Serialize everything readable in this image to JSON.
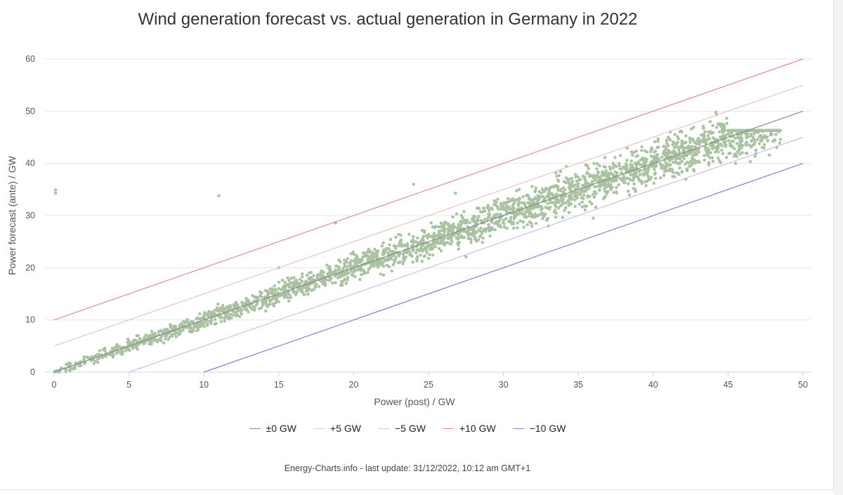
{
  "chart_data": {
    "type": "scatter",
    "title": "Wind generation forecast vs. actual generation in Germany in 2022",
    "xlabel": "Power (post) / GW",
    "ylabel": "Power forecast (ante) / GW",
    "xlim": [
      0,
      50
    ],
    "ylim": [
      0,
      60
    ],
    "x_ticks": [
      0,
      5,
      10,
      15,
      20,
      25,
      30,
      35,
      40,
      45,
      50
    ],
    "y_ticks": [
      0,
      10,
      20,
      30,
      40,
      50,
      60
    ],
    "grid": true,
    "legend_position": "bottom-center",
    "scatter_color": "#a9c2a0",
    "reference_lines": [
      {
        "name": "±0 GW",
        "offset": 0,
        "color": "#8a8a8a"
      },
      {
        "name": "+5 GW",
        "offset": 5,
        "color": "#f2c2c2"
      },
      {
        "name": "−5 GW",
        "offset": -5,
        "color": "#c3c3ee"
      },
      {
        "name": "+10 GW",
        "offset": 10,
        "color": "#e88a8a"
      },
      {
        "name": "−10 GW",
        "offset": -10,
        "color": "#8080e0"
      }
    ],
    "points": [
      [
        0.2,
        0.3
      ],
      [
        0.5,
        0.8
      ],
      [
        1.0,
        1.1
      ],
      [
        1.5,
        1.7
      ],
      [
        2.0,
        2.4
      ],
      [
        2.5,
        2.2
      ],
      [
        3.0,
        3.4
      ],
      [
        3.5,
        3.2
      ],
      [
        4.0,
        4.6
      ],
      [
        4.5,
        4.1
      ],
      [
        5.0,
        5.5
      ],
      [
        5.5,
        4.9
      ],
      [
        6.0,
        6.4
      ],
      [
        6.5,
        6.0
      ],
      [
        7.0,
        7.8
      ],
      [
        7.5,
        6.9
      ],
      [
        8.0,
        8.4
      ],
      [
        8.5,
        9.3
      ],
      [
        9.0,
        8.6
      ],
      [
        9.5,
        10.2
      ],
      [
        10.0,
        10.9
      ],
      [
        10.5,
        9.8
      ],
      [
        11.0,
        11.7
      ],
      [
        11.5,
        11.2
      ],
      [
        12.0,
        12.9
      ],
      [
        12.5,
        11.8
      ],
      [
        13.0,
        13.6
      ],
      [
        13.5,
        14.4
      ],
      [
        14.0,
        13.2
      ],
      [
        14.5,
        15.1
      ],
      [
        15.0,
        16.0
      ],
      [
        15.5,
        14.6
      ],
      [
        16.0,
        17.2
      ],
      [
        16.5,
        16.1
      ],
      [
        17.0,
        17.9
      ],
      [
        17.5,
        16.8
      ],
      [
        18.0,
        19.1
      ],
      [
        18.5,
        18.0
      ],
      [
        19.0,
        20.2
      ],
      [
        19.5,
        18.8
      ],
      [
        20.0,
        21.3
      ],
      [
        20.5,
        19.9
      ],
      [
        21.0,
        22.1
      ],
      [
        21.5,
        20.8
      ],
      [
        22.0,
        23.4
      ],
      [
        22.5,
        21.7
      ],
      [
        23.0,
        24.2
      ],
      [
        23.5,
        22.9
      ],
      [
        24.0,
        25.1
      ],
      [
        24.5,
        23.6
      ],
      [
        25.0,
        26.4
      ],
      [
        25.5,
        24.8
      ],
      [
        26.0,
        27.1
      ],
      [
        26.5,
        25.7
      ],
      [
        27.0,
        28.3
      ],
      [
        27.5,
        26.9
      ],
      [
        28.0,
        29.0
      ],
      [
        28.5,
        27.6
      ],
      [
        29.0,
        30.3
      ],
      [
        29.5,
        28.7
      ],
      [
        30.0,
        31.2
      ],
      [
        30.5,
        29.6
      ],
      [
        31.0,
        32.4
      ],
      [
        31.5,
        30.8
      ],
      [
        32.0,
        33.1
      ],
      [
        32.5,
        31.7
      ],
      [
        33.0,
        34.2
      ],
      [
        33.5,
        32.6
      ],
      [
        34.0,
        35.3
      ],
      [
        34.5,
        33.8
      ],
      [
        35.0,
        36.1
      ],
      [
        35.5,
        34.7
      ],
      [
        36.0,
        37.2
      ],
      [
        36.5,
        35.6
      ],
      [
        37.0,
        38.1
      ],
      [
        37.5,
        36.9
      ],
      [
        38.0,
        39.3
      ],
      [
        38.5,
        37.8
      ],
      [
        39.0,
        40.0
      ],
      [
        39.5,
        38.9
      ],
      [
        40.0,
        41.2
      ],
      [
        40.5,
        39.7
      ],
      [
        41.0,
        42.1
      ],
      [
        41.5,
        40.8
      ],
      [
        42.0,
        43.0
      ],
      [
        42.5,
        41.9
      ],
      [
        43.0,
        43.8
      ],
      [
        43.5,
        42.6
      ],
      [
        44.0,
        44.9
      ],
      [
        44.5,
        43.7
      ],
      [
        45.0,
        45.6
      ],
      [
        45.5,
        44.8
      ],
      [
        46.0,
        46.1
      ],
      [
        46.5,
        45.3
      ],
      [
        47.0,
        45.9
      ],
      [
        47.5,
        44.9
      ],
      [
        48.0,
        44.2
      ],
      [
        48.5,
        44.6
      ],
      [
        0.1,
        34.9
      ],
      [
        0.1,
        34.3
      ],
      [
        11.0,
        33.8
      ],
      [
        18.8,
        28.6
      ],
      [
        24.0,
        36.0
      ],
      [
        26.8,
        34.3
      ],
      [
        34.2,
        39.4
      ],
      [
        36.0,
        29.5
      ],
      [
        27.5,
        22.1
      ],
      [
        15.0,
        20.0
      ],
      [
        22.0,
        18.6
      ],
      [
        33.0,
        28.0
      ],
      [
        41.0,
        45.0
      ],
      [
        19.5,
        17.0
      ]
    ]
  },
  "legend_items": [
    {
      "label": "±0 GW"
    },
    {
      "label": "+5 GW"
    },
    {
      "label": "−5 GW"
    },
    {
      "label": "+10 GW"
    },
    {
      "label": "−10 GW"
    }
  ],
  "footer": "Energy-Charts.info - last update: 31/12/2022, 10:12 am GMT+1"
}
